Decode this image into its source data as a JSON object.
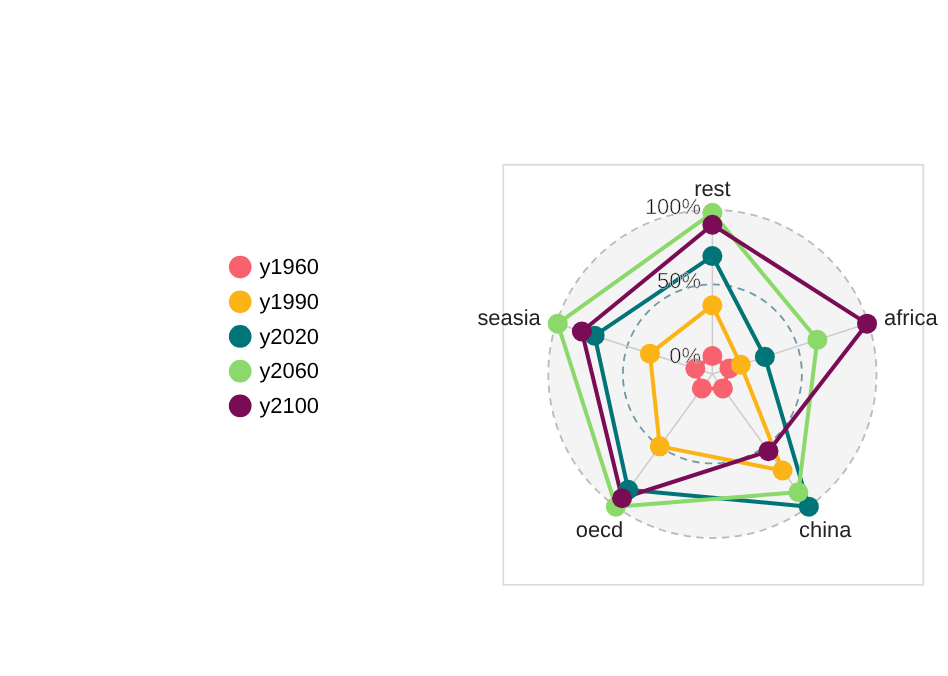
{
  "chart_data": {
    "type": "radar",
    "categories": [
      "rest",
      "africa",
      "china",
      "oecd",
      "seasia"
    ],
    "series": [
      {
        "name": "y1960",
        "color": "#f8626f",
        "values": [
          2,
          2,
          2,
          2,
          2
        ]
      },
      {
        "name": "y1990",
        "color": "#fbb315",
        "values": [
          36,
          10,
          70,
          50,
          34
        ]
      },
      {
        "name": "y2020",
        "color": "#007476",
        "values": [
          69,
          27,
          100,
          86,
          73
        ]
      },
      {
        "name": "y2060",
        "color": "#8bd96b",
        "values": [
          98,
          64,
          88,
          100,
          99
        ]
      },
      {
        "name": "y2100",
        "color": "#7a0b55",
        "values": [
          90,
          99,
          54,
          93,
          82
        ]
      }
    ],
    "ylim": [
      -10,
      100
    ],
    "yticks": [
      {
        "value": 0,
        "label": "0%"
      },
      {
        "value": 50,
        "label": "50%"
      },
      {
        "value": 100,
        "label": "100%"
      }
    ],
    "legend": "left",
    "marker": "circle",
    "line_style": "solid",
    "grid": true
  }
}
